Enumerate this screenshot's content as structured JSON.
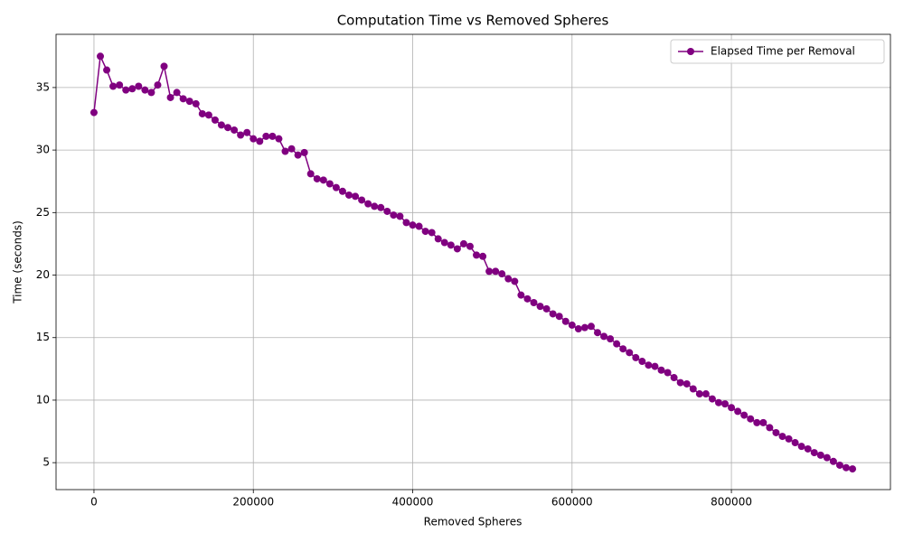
{
  "chart_data": {
    "type": "line",
    "title": "Computation Time vs Removed Spheres",
    "xlabel": "Removed Spheres",
    "ylabel": "Time (seconds)",
    "x": [
      0,
      8000,
      16000,
      24000,
      32000,
      40000,
      48000,
      56000,
      64000,
      72000,
      80000,
      88000,
      96000,
      104000,
      112000,
      120000,
      128000,
      136000,
      144000,
      152000,
      160000,
      168000,
      176000,
      184000,
      192000,
      200000,
      208000,
      216000,
      224000,
      232000,
      240000,
      248000,
      256000,
      264000,
      272000,
      280000,
      288000,
      296000,
      304000,
      312000,
      320000,
      328000,
      336000,
      344000,
      352000,
      360000,
      368000,
      376000,
      384000,
      392000,
      400000,
      408000,
      416000,
      424000,
      432000,
      440000,
      448000,
      456000,
      464000,
      472000,
      480000,
      488000,
      496000,
      504000,
      512000,
      520000,
      528000,
      536000,
      544000,
      552000,
      560000,
      568000,
      576000,
      584000,
      592000,
      600000,
      608000,
      616000,
      624000,
      632000,
      640000,
      648000,
      656000,
      664000,
      672000,
      680000,
      688000,
      696000,
      704000,
      712000,
      720000,
      728000,
      736000,
      744000,
      752000,
      760000,
      768000,
      776000,
      784000,
      792000,
      800000,
      808000,
      816000,
      824000,
      832000,
      840000,
      848000,
      856000,
      864000,
      872000,
      880000,
      888000,
      896000,
      904000,
      912000,
      920000,
      928000,
      936000,
      944000,
      952000
    ],
    "series": [
      {
        "name": "Elapsed Time per Removal",
        "color": "#800080",
        "values": [
          33.0,
          37.5,
          36.4,
          35.1,
          35.2,
          34.8,
          34.9,
          35.1,
          34.8,
          34.6,
          35.2,
          36.7,
          34.2,
          34.6,
          34.1,
          33.9,
          33.7,
          32.9,
          32.8,
          32.4,
          32.0,
          31.8,
          31.6,
          31.2,
          31.4,
          30.9,
          30.7,
          31.1,
          31.1,
          30.9,
          29.9,
          30.1,
          29.6,
          29.8,
          28.1,
          27.7,
          27.6,
          27.3,
          27.0,
          26.7,
          26.4,
          26.3,
          26.0,
          25.7,
          25.5,
          25.4,
          25.1,
          24.8,
          24.7,
          24.2,
          24.0,
          23.9,
          23.5,
          23.4,
          22.9,
          22.6,
          22.4,
          22.1,
          22.5,
          22.3,
          21.6,
          21.5,
          20.3,
          20.3,
          20.1,
          19.7,
          19.5,
          18.4,
          18.1,
          17.8,
          17.5,
          17.3,
          16.9,
          16.7,
          16.3,
          16.0,
          15.7,
          15.8,
          15.9,
          15.4,
          15.1,
          14.9,
          14.5,
          14.1,
          13.8,
          13.4,
          13.1,
          12.8,
          12.7,
          12.4,
          12.2,
          11.8,
          11.4,
          11.3,
          10.9,
          10.5,
          10.5,
          10.1,
          9.8,
          9.7,
          9.4,
          9.1,
          8.8,
          8.5,
          8.2,
          8.2,
          7.8,
          7.4,
          7.1,
          6.9,
          6.6,
          6.3,
          6.1,
          5.8,
          5.6,
          5.4,
          5.1,
          4.8,
          4.6,
          4.5
        ]
      }
    ],
    "xlim": [
      -47600,
      999600
    ],
    "ylim": [
      2.845,
      39.255
    ],
    "xticks": [
      0,
      200000,
      400000,
      600000,
      800000
    ],
    "yticks": [
      5,
      10,
      15,
      20,
      25,
      30,
      35
    ],
    "grid": true,
    "legend": "upper right"
  }
}
